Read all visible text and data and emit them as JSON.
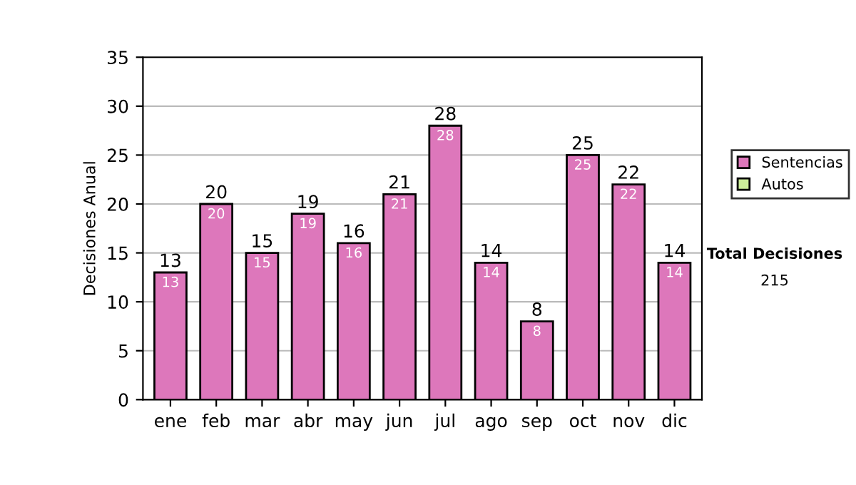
{
  "chart_data": {
    "type": "bar",
    "stacked": true,
    "ylabel": "Decisiones Anual",
    "categories": [
      "ene",
      "feb",
      "mar",
      "abr",
      "may",
      "jun",
      "jul",
      "ago",
      "sep",
      "oct",
      "nov",
      "dic"
    ],
    "series": [
      {
        "name": "Sentencias",
        "color": "#dd77bb",
        "values": [
          13,
          20,
          15,
          19,
          16,
          21,
          28,
          14,
          8,
          25,
          22,
          14
        ],
        "value_labels": [
          "13",
          "20",
          "15",
          "19",
          "16",
          "21",
          "28",
          "14",
          "8",
          "25",
          "22",
          "14"
        ]
      },
      {
        "name": "Autos",
        "color": "#ccee99",
        "values": [
          0,
          0,
          0,
          0,
          0,
          0,
          0,
          0,
          0,
          0,
          0,
          0
        ]
      }
    ],
    "totals": [
      "13",
      "20",
      "15",
      "19",
      "16",
      "21",
      "28",
      "14",
      "8",
      "25",
      "22",
      "14"
    ],
    "ylim": [
      0,
      35
    ],
    "yticks": [
      0,
      5,
      10,
      15,
      20,
      25,
      30,
      35
    ],
    "grid": "y",
    "legend": "right",
    "annotations": [
      "Total Decisiones",
      "215"
    ]
  }
}
